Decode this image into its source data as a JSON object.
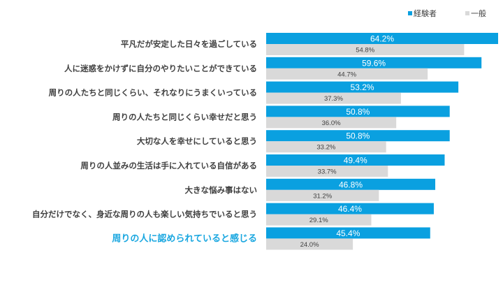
{
  "chart_data": {
    "type": "bar",
    "orientation": "horizontal",
    "categories": [
      "平凡だが安定した日々を過ごしている",
      "人に迷惑をかけずに自分のやりたいことができている",
      "周りの人たちと同じくらい、それなりにうまくいっている",
      "周りの人たちと同じくらい幸せだと思う",
      "大切な人を幸せにしていると思う",
      "周りの人並みの生活は手に入れている自信がある",
      "大きな悩み事はない",
      "自分だけでなく、身近な周りの人も楽しい気持ちでいると思う",
      "周りの人に認められていると感じる"
    ],
    "highlighted_category_index": 8,
    "series": [
      {
        "name": "経験者",
        "color": "#0aa0e0",
        "values": [
          64.2,
          59.6,
          53.2,
          50.8,
          50.8,
          49.4,
          46.8,
          46.4,
          45.4
        ],
        "labels": [
          "64.2%",
          "59.6%",
          "53.2%",
          "50.8%",
          "50.8%",
          "49.4%",
          "46.8%",
          "46.4%",
          "45.4%"
        ]
      },
      {
        "name": "一般",
        "color": "#d9d9d9",
        "values": [
          54.8,
          44.7,
          37.3,
          36.0,
          33.2,
          33.7,
          31.2,
          29.1,
          24.0
        ],
        "labels": [
          "54.8%",
          "44.7%",
          "37.3%",
          "36.0%",
          "33.2%",
          "33.7%",
          "31.2%",
          "29.1%",
          "24.0%"
        ]
      }
    ],
    "highlight_color": "#1aa7e0",
    "xlim": [
      0,
      64.2
    ],
    "grid": false,
    "legend_position": "top-right",
    "unit": "%"
  }
}
